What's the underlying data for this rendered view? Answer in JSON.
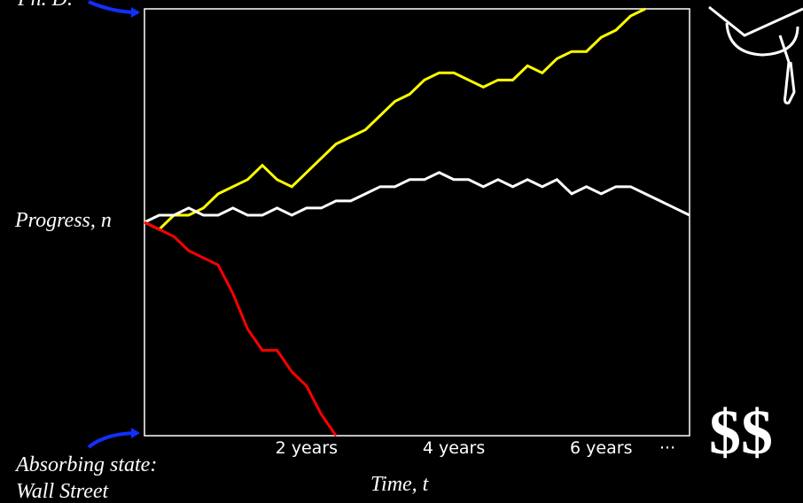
{
  "chart_data": {
    "type": "line",
    "top_label": "Ph. D.",
    "y_label": "Progress, n",
    "x_label": "Time, t",
    "annotation": [
      "Absorbing state:",
      "Wall Street"
    ],
    "corner_text": "$$",
    "x": [
      -0.2,
      0,
      0.2,
      0.4,
      0.6,
      0.8,
      1,
      1.2,
      1.4,
      1.6,
      1.8,
      2,
      2.2,
      2.4,
      2.6,
      2.8,
      3,
      3.2,
      3.4,
      3.6,
      3.8,
      4,
      4.2,
      4.4,
      4.6,
      4.8,
      5,
      5.2,
      5.4,
      5.6,
      5.8,
      6,
      6.2,
      6.4,
      6.6,
      6.8,
      7,
      7.2
    ],
    "series": [
      {
        "color": "#ffff00",
        "values": [
          0,
          -1,
          1,
          1,
          2,
          4,
          5,
          6,
          8,
          6,
          5,
          7,
          9,
          11,
          12,
          13,
          15,
          17,
          18,
          20,
          21,
          21,
          20,
          19,
          20,
          20,
          22,
          21,
          23,
          24,
          24,
          26,
          27,
          29,
          30,
          null,
          null,
          null
        ]
      },
      {
        "color": "#ffffff",
        "values": [
          0,
          1,
          1,
          2,
          1,
          1,
          2,
          1,
          1,
          2,
          1,
          2,
          2,
          3,
          3,
          4,
          5,
          5,
          6,
          6,
          7,
          6,
          6,
          5,
          6,
          5,
          6,
          5,
          6,
          4,
          5,
          4,
          5,
          5,
          4,
          3,
          2,
          1
        ]
      },
      {
        "color": "#ff0000",
        "values": [
          0,
          -1,
          -2,
          -4,
          -5,
          -6,
          -10,
          -15,
          -18,
          -18,
          -21,
          -23,
          -27,
          -30,
          null,
          null,
          null,
          null,
          null,
          null,
          null,
          null,
          null,
          null,
          null,
          null,
          null,
          null,
          null,
          null,
          null,
          null,
          null,
          null,
          null,
          null,
          null,
          null
        ]
      }
    ],
    "xlim": [
      -0.2,
      7.2
    ],
    "ylim": [
      -30,
      30
    ],
    "xticks": [
      {
        "value": 2,
        "label": "2 years"
      },
      {
        "value": 4,
        "label": "4 years"
      },
      {
        "value": 6,
        "label": "6 years"
      },
      {
        "value": 6.9,
        "label": "···"
      }
    ]
  }
}
